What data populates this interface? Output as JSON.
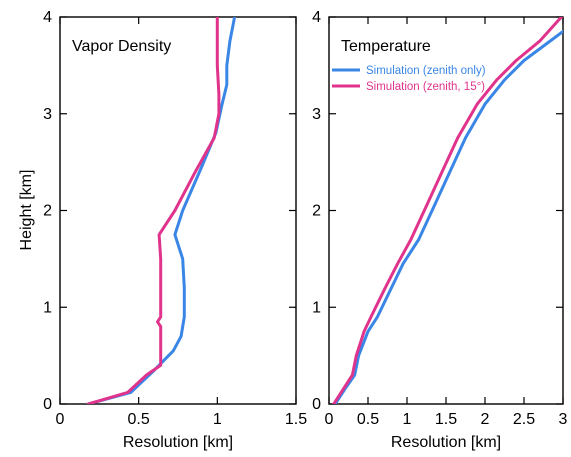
{
  "colors": {
    "blue": "#3a86e6",
    "pink": "#e0338c",
    "axis": "#000000"
  },
  "ylabel": "Height [km]",
  "chart_data": [
    {
      "type": "line",
      "title": "Vapor Density",
      "xlabel": "Resolution [km]",
      "ylabel": "Height [km]",
      "xlim": [
        0,
        1.5
      ],
      "ylim": [
        0,
        4
      ],
      "x_ticks": [
        0,
        0.5,
        1,
        1.5
      ],
      "x_tick_labels": [
        "0",
        "0.5",
        "1",
        "1.5"
      ],
      "y_ticks": [
        0,
        1,
        2,
        3,
        4
      ],
      "y_tick_labels": [
        "0",
        "1",
        "2",
        "3",
        "4"
      ],
      "legend": null,
      "series": [
        {
          "color": "#3a86e6",
          "points": [
            [
              0.18,
              0.0
            ],
            [
              0.45,
              0.12
            ],
            [
              0.6,
              0.35
            ],
            [
              0.72,
              0.55
            ],
            [
              0.77,
              0.7
            ],
            [
              0.79,
              0.9
            ],
            [
              0.79,
              1.2
            ],
            [
              0.78,
              1.5
            ],
            [
              0.73,
              1.75
            ],
            [
              0.78,
              2.0
            ],
            [
              0.9,
              2.45
            ],
            [
              0.99,
              2.8
            ],
            [
              1.03,
              3.1
            ],
            [
              1.06,
              3.3
            ],
            [
              1.06,
              3.5
            ],
            [
              1.08,
              3.75
            ],
            [
              1.11,
              4.0
            ]
          ]
        },
        {
          "color": "#e0338c",
          "points": [
            [
              0.18,
              0.0
            ],
            [
              0.43,
              0.12
            ],
            [
              0.55,
              0.3
            ],
            [
              0.64,
              0.4
            ],
            [
              0.64,
              0.6
            ],
            [
              0.64,
              0.8
            ],
            [
              0.62,
              0.85
            ],
            [
              0.64,
              0.9
            ],
            [
              0.64,
              1.2
            ],
            [
              0.64,
              1.5
            ],
            [
              0.63,
              1.75
            ],
            [
              0.73,
              2.0
            ],
            [
              0.86,
              2.4
            ],
            [
              0.98,
              2.75
            ],
            [
              1.01,
              3.0
            ],
            [
              1.01,
              3.2
            ],
            [
              1.0,
              3.5
            ],
            [
              1.0,
              3.75
            ],
            [
              1.0,
              4.0
            ]
          ]
        }
      ]
    },
    {
      "type": "line",
      "title": "Temperature",
      "xlabel": "Resolution [km]",
      "ylabel": "",
      "xlim": [
        0,
        3
      ],
      "ylim": [
        0,
        4
      ],
      "x_ticks": [
        0,
        0.5,
        1,
        1.5,
        2,
        2.5,
        3
      ],
      "x_tick_labels": [
        "0",
        "0.5",
        "1",
        "1.5",
        "2",
        "2.5",
        "3"
      ],
      "y_ticks": [
        0,
        1,
        2,
        3,
        4
      ],
      "y_tick_labels": [
        "0",
        "1",
        "2",
        "3",
        "4"
      ],
      "legend": "top-right",
      "series": [
        {
          "name": "Simulation (zenith only)",
          "color": "#3a86e6",
          "points": [
            [
              0.08,
              0.0
            ],
            [
              0.2,
              0.15
            ],
            [
              0.33,
              0.3
            ],
            [
              0.38,
              0.5
            ],
            [
              0.5,
              0.75
            ],
            [
              0.62,
              0.9
            ],
            [
              0.8,
              1.2
            ],
            [
              0.95,
              1.45
            ],
            [
              1.15,
              1.7
            ],
            [
              1.35,
              2.05
            ],
            [
              1.55,
              2.4
            ],
            [
              1.75,
              2.75
            ],
            [
              2.0,
              3.1
            ],
            [
              2.25,
              3.35
            ],
            [
              2.5,
              3.55
            ],
            [
              2.75,
              3.7
            ],
            [
              3.0,
              3.85
            ]
          ]
        },
        {
          "name": "Simulation (zenith, 15°)",
          "color": "#e0338c",
          "points": [
            [
              0.06,
              0.0
            ],
            [
              0.18,
              0.15
            ],
            [
              0.3,
              0.3
            ],
            [
              0.35,
              0.5
            ],
            [
              0.45,
              0.75
            ],
            [
              0.55,
              0.92
            ],
            [
              0.72,
              1.2
            ],
            [
              0.88,
              1.45
            ],
            [
              1.05,
              1.7
            ],
            [
              1.25,
              2.05
            ],
            [
              1.45,
              2.4
            ],
            [
              1.65,
              2.75
            ],
            [
              1.9,
              3.1
            ],
            [
              2.15,
              3.35
            ],
            [
              2.4,
              3.55
            ],
            [
              2.7,
              3.75
            ],
            [
              2.98,
              4.0
            ]
          ]
        }
      ]
    }
  ]
}
